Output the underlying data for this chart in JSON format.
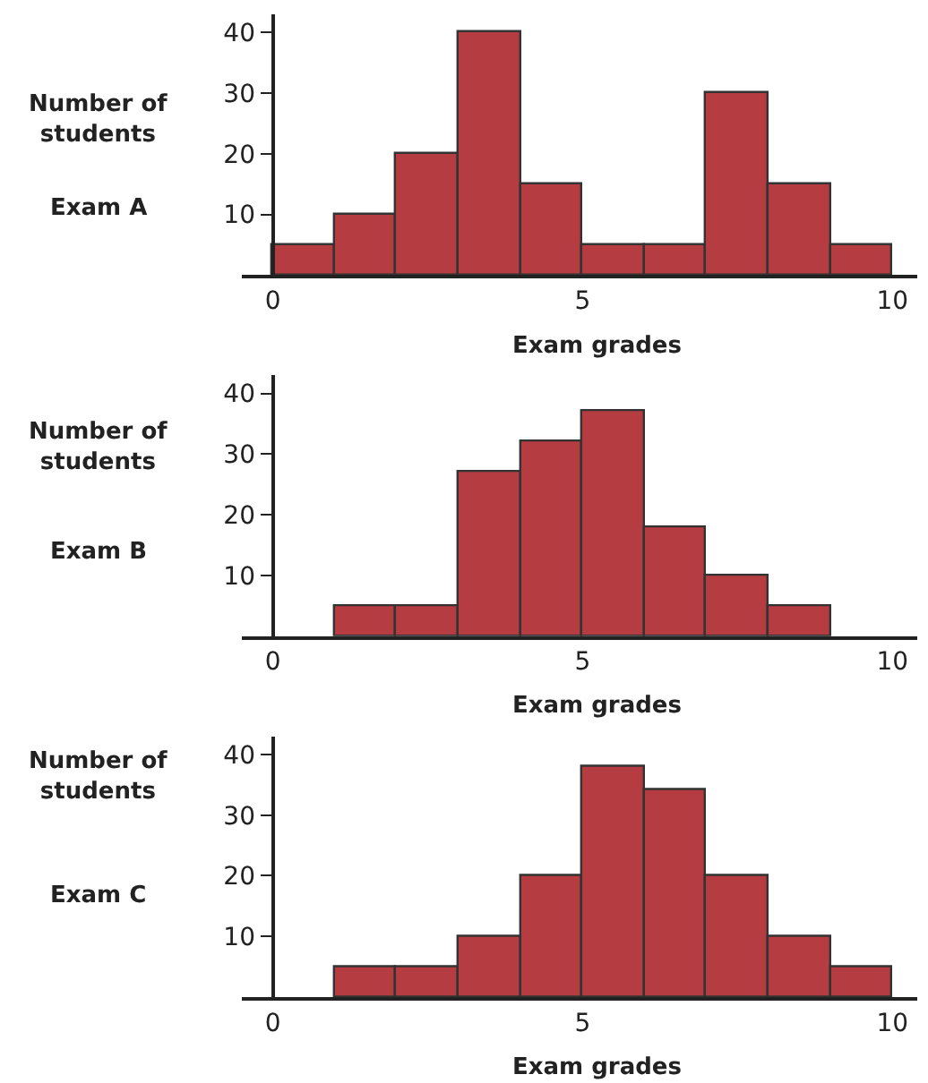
{
  "chart_data": [
    {
      "type": "histogram",
      "title": "Exam A",
      "ylabel": "Number of students",
      "xlabel": "Exam grades",
      "bins": [
        0,
        1,
        2,
        3,
        4,
        5,
        6,
        7,
        8,
        9,
        10
      ],
      "values": [
        5,
        10,
        20,
        40,
        15,
        5,
        5,
        30,
        15,
        5
      ],
      "color": "#b53d42",
      "xlim": [
        -0.5,
        10.4
      ],
      "xticks": [
        0,
        5,
        10
      ],
      "ylim": [
        0,
        43
      ],
      "yticks": [
        10,
        20,
        30,
        40
      ]
    },
    {
      "type": "histogram",
      "title": "Exam B",
      "ylabel": "Number of students",
      "xlabel": "Exam grades",
      "bins": [
        0,
        1,
        2,
        3,
        4,
        5,
        6,
        7,
        8,
        9,
        10
      ],
      "values": [
        0,
        5,
        5,
        27,
        32,
        37,
        18,
        10,
        5,
        0
      ],
      "color": "#b53d42",
      "xlim": [
        -0.5,
        10.4
      ],
      "xticks": [
        0,
        5,
        10
      ],
      "ylim": [
        0,
        43
      ],
      "yticks": [
        10,
        20,
        30,
        40
      ]
    },
    {
      "type": "histogram",
      "title": "Exam C",
      "ylabel": "Number of students",
      "xlabel": "Exam grades",
      "bins": [
        0,
        1,
        2,
        3,
        4,
        5,
        6,
        7,
        8,
        9,
        10
      ],
      "values": [
        0,
        5,
        5,
        10,
        20,
        38,
        34,
        20,
        10,
        5
      ],
      "color": "#b53d42",
      "xlim": [
        -0.5,
        10.4
      ],
      "xticks": [
        0,
        5,
        10
      ],
      "ylim": [
        0,
        43
      ],
      "yticks": [
        10,
        20,
        30,
        40
      ]
    }
  ]
}
